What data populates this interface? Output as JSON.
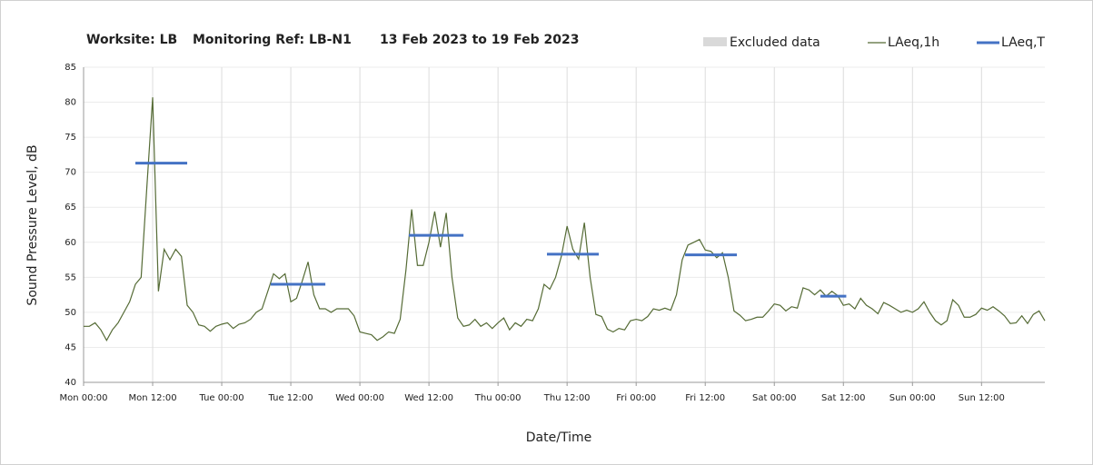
{
  "chart_data": {
    "type": "line",
    "title": [
      "Worksite: LB",
      "Monitoring Ref: LB-N1",
      "13 Feb 2023 to 19 Feb 2023"
    ],
    "xlabel": "Date/Time",
    "ylabel": "Sound Pressure Level, dB",
    "xlim": [
      0,
      167
    ],
    "ylim": [
      40,
      85
    ],
    "yticks": [
      40,
      45,
      50,
      55,
      60,
      65,
      70,
      75,
      80,
      85
    ],
    "xticks": [
      {
        "value": 0,
        "label": "Mon 00:00"
      },
      {
        "value": 12,
        "label": "Mon 12:00"
      },
      {
        "value": 24,
        "label": "Tue 00:00"
      },
      {
        "value": 36,
        "label": "Tue 12:00"
      },
      {
        "value": 48,
        "label": "Wed 00:00"
      },
      {
        "value": 60,
        "label": "Wed 12:00"
      },
      {
        "value": 72,
        "label": "Thu 00:00"
      },
      {
        "value": 84,
        "label": "Thu 12:00"
      },
      {
        "value": 96,
        "label": "Fri 00:00"
      },
      {
        "value": 108,
        "label": "Fri 12:00"
      },
      {
        "value": 120,
        "label": "Sat 00:00"
      },
      {
        "value": 132,
        "label": "Sat 12:00"
      },
      {
        "value": 144,
        "label": "Sun 00:00"
      },
      {
        "value": 156,
        "label": "Sun 12:00"
      }
    ],
    "grid": true,
    "excluded": {
      "name": "Excluded data",
      "color": "#d9d9d9"
    },
    "series": [
      {
        "name": "LAeq,1h",
        "color": "#556b35",
        "x": [
          0,
          1,
          2,
          3,
          4,
          5,
          6,
          7,
          8,
          9,
          10,
          11,
          12,
          13,
          14,
          15,
          16,
          17,
          18,
          19,
          20,
          21,
          22,
          23,
          24,
          25,
          26,
          27,
          28,
          29,
          30,
          31,
          32,
          33,
          34,
          35,
          36,
          37,
          38,
          39,
          40,
          41,
          42,
          43,
          44,
          45,
          46,
          47,
          48,
          49,
          50,
          51,
          52,
          53,
          54,
          55,
          56,
          57,
          58,
          59,
          60,
          61,
          62,
          63,
          64,
          65,
          66,
          67,
          68,
          69,
          70,
          71,
          72,
          73,
          74,
          75,
          76,
          77,
          78,
          79,
          80,
          81,
          82,
          83,
          84,
          85,
          86,
          87,
          88,
          89,
          90,
          91,
          92,
          93,
          94,
          95,
          96,
          97,
          98,
          99,
          100,
          101,
          102,
          103,
          104,
          105,
          106,
          107,
          108,
          109,
          110,
          111,
          112,
          113,
          114,
          115,
          116,
          117,
          118,
          119,
          120,
          121,
          122,
          123,
          124,
          125,
          126,
          127,
          128,
          129,
          130,
          131,
          132,
          133,
          134,
          135,
          136,
          137,
          138,
          139,
          140,
          141,
          142,
          143,
          144,
          145,
          146,
          147,
          148,
          149,
          150,
          151,
          152,
          153,
          154,
          155,
          156,
          157,
          158,
          159,
          160,
          161,
          162,
          163,
          164,
          165,
          166,
          167
        ],
        "values": [
          48,
          48,
          48.5,
          47.5,
          46,
          47.5,
          48.5,
          50,
          51.5,
          54,
          55,
          68,
          80.7,
          53,
          59,
          57.5,
          59,
          58,
          51,
          50,
          48.2,
          48,
          47.3,
          48,
          48.3,
          48.5,
          47.7,
          48.3,
          48.5,
          49,
          50,
          50.5,
          53,
          55.5,
          54.8,
          55.5,
          51.5,
          52,
          54.5,
          57.2,
          52.5,
          50.5,
          50.5,
          50,
          50.5,
          50.5,
          50.5,
          49.5,
          47.2,
          47,
          46.8,
          46,
          46.5,
          47.2,
          47,
          49,
          56,
          64.7,
          56.7,
          56.7,
          60,
          64.4,
          59.3,
          64.2,
          55,
          49.2,
          48,
          48.2,
          49,
          48,
          48.5,
          47.7,
          48.5,
          49.2,
          47.5,
          48.5,
          48,
          49,
          48.8,
          50.5,
          54,
          53.3,
          55,
          58,
          62.3,
          59,
          57.6,
          62.8,
          55,
          49.7,
          49.4,
          47.6,
          47.2,
          47.7,
          47.5,
          48.8,
          49,
          48.8,
          49.4,
          50.5,
          50.3,
          50.6,
          50.3,
          52.5,
          57.5,
          59.6,
          60,
          60.4,
          58.9,
          58.7,
          57.8,
          58.5,
          55,
          50.2,
          49.6,
          48.8,
          49,
          49.3,
          49.3,
          50.2,
          51.2,
          51,
          50.2,
          50.8,
          50.6,
          53.5,
          53.2,
          52.5,
          53.2,
          52.3,
          53,
          52.4,
          51,
          51.2,
          50.5,
          52,
          51,
          50.5,
          49.8,
          51.4,
          51,
          50.5,
          50,
          50.3,
          50,
          50.5,
          51.5,
          50,
          48.8,
          48.2,
          48.8,
          51.8,
          51,
          49.3,
          49.3,
          49.7,
          50.6,
          50.3,
          50.8,
          50.2,
          49.5,
          48.4,
          48.5,
          49.5,
          48.4,
          49.7,
          50.2,
          48.8
        ]
      },
      {
        "name": "LAeq,T",
        "color": "#4472c4",
        "type": "segments",
        "segments": [
          {
            "start": 9,
            "end": 18,
            "value": 71.3
          },
          {
            "start": 32.5,
            "end": 42,
            "value": 54
          },
          {
            "start": 56.5,
            "end": 66,
            "value": 61
          },
          {
            "start": 80.5,
            "end": 89.5,
            "value": 58.3
          },
          {
            "start": 104.5,
            "end": 113.5,
            "value": 58.2
          },
          {
            "start": 128,
            "end": 132.5,
            "value": 52.3
          }
        ]
      }
    ]
  }
}
